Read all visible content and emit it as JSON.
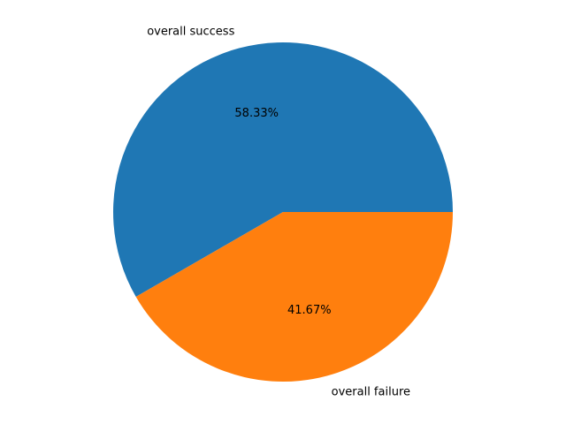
{
  "chart_data": {
    "type": "pie",
    "title": "",
    "labels": [
      "overall success",
      "overall failure"
    ],
    "values": [
      58.33,
      41.67
    ],
    "percent_labels": [
      "58.33%",
      "41.67%"
    ],
    "colors": [
      "#1f77b4",
      "#ff7f0e"
    ],
    "start_angle_deg": 0,
    "direction": "counterclockwise"
  }
}
